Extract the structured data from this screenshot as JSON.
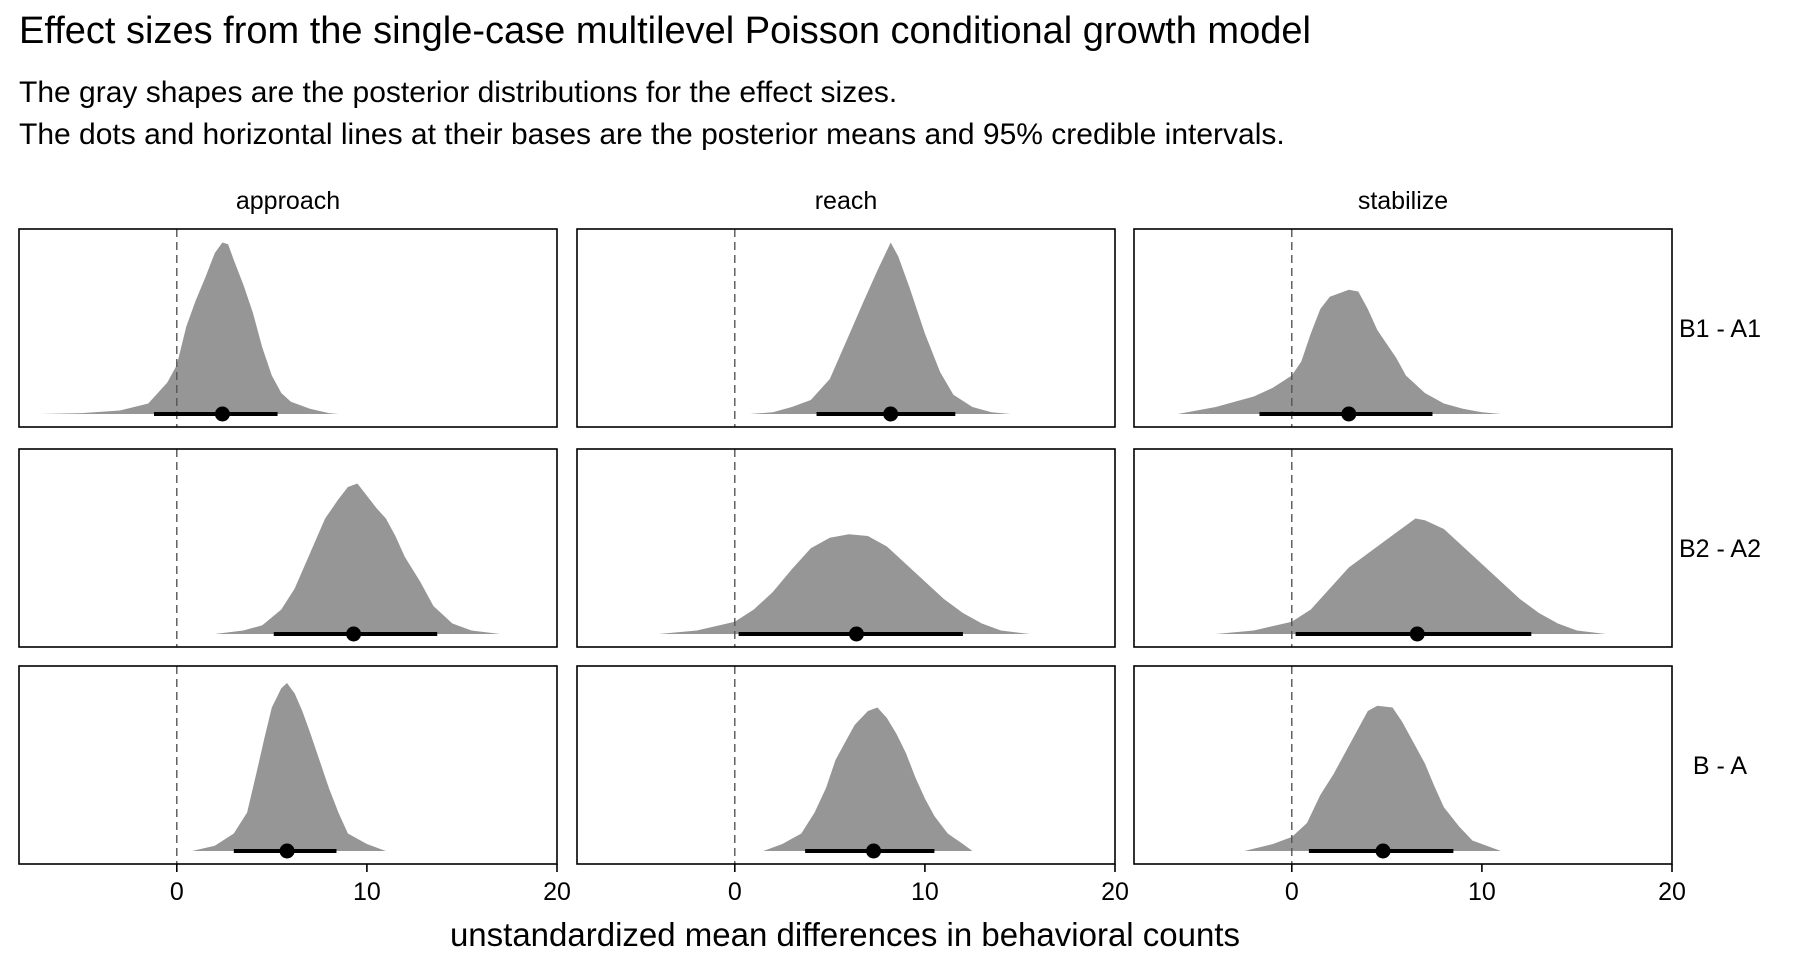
{
  "chart_data": {
    "type": "ridge",
    "title": "Effect sizes from the single-case multilevel Poisson conditional growth model",
    "subtitle": [
      "The gray shapes are the posterior distributions for the effect sizes.",
      "The dots and horizontal lines at their bases are the posterior means and 95% credible intervals."
    ],
    "xlabel": "unstandardized mean differences in behavioral counts",
    "xlim": [
      -8.3,
      20
    ],
    "xticks": [
      0,
      10,
      20
    ],
    "reference_line_x": 0,
    "columns": [
      "approach",
      "reach",
      "stabilize"
    ],
    "rows": [
      "B1 - A1",
      "B2 - A2",
      "B - A"
    ],
    "fill_color": "#969696",
    "panels": [
      {
        "column": "approach",
        "row": "B1 - A1",
        "mean": 2.4,
        "ci": [
          -1.2,
          5.3
        ],
        "density": [
          [
            -7.2,
            0
          ],
          [
            -5,
            0.005
          ],
          [
            -3,
            0.02
          ],
          [
            -1.5,
            0.06
          ],
          [
            -1,
            0.12
          ],
          [
            -0.5,
            0.18
          ],
          [
            0,
            0.28
          ],
          [
            0.5,
            0.5
          ],
          [
            1,
            0.65
          ],
          [
            1.5,
            0.78
          ],
          [
            2,
            0.92
          ],
          [
            2.4,
            0.98
          ],
          [
            2.7,
            0.97
          ],
          [
            3,
            0.88
          ],
          [
            3.5,
            0.74
          ],
          [
            4,
            0.58
          ],
          [
            4.5,
            0.38
          ],
          [
            5,
            0.22
          ],
          [
            5.5,
            0.12
          ],
          [
            6,
            0.07
          ],
          [
            7,
            0.03
          ],
          [
            8,
            0.005
          ],
          [
            8.5,
            0
          ]
        ]
      },
      {
        "column": "reach",
        "row": "B1 - A1",
        "mean": 8.2,
        "ci": [
          4.3,
          11.6
        ],
        "density": [
          [
            0.8,
            0
          ],
          [
            2,
            0.01
          ],
          [
            3,
            0.04
          ],
          [
            4,
            0.08
          ],
          [
            5,
            0.2
          ],
          [
            6,
            0.45
          ],
          [
            6.8,
            0.65
          ],
          [
            7.5,
            0.82
          ],
          [
            8.2,
            0.98
          ],
          [
            8.6,
            0.9
          ],
          [
            9.2,
            0.72
          ],
          [
            10,
            0.46
          ],
          [
            10.8,
            0.24
          ],
          [
            11.5,
            0.11
          ],
          [
            12.5,
            0.04
          ],
          [
            13.5,
            0.01
          ],
          [
            14.5,
            0
          ]
        ]
      },
      {
        "column": "stabilize",
        "row": "B1 - A1",
        "mean": 3.0,
        "ci": [
          -1.7,
          7.4
        ],
        "density": [
          [
            -6,
            0
          ],
          [
            -4,
            0.04
          ],
          [
            -2,
            0.1
          ],
          [
            -1,
            0.15
          ],
          [
            0,
            0.22
          ],
          [
            0.5,
            0.3
          ],
          [
            1,
            0.46
          ],
          [
            1.5,
            0.6
          ],
          [
            2,
            0.67
          ],
          [
            2.5,
            0.69
          ],
          [
            3,
            0.71
          ],
          [
            3.5,
            0.7
          ],
          [
            4,
            0.6
          ],
          [
            4.5,
            0.48
          ],
          [
            5,
            0.4
          ],
          [
            5.5,
            0.32
          ],
          [
            6,
            0.22
          ],
          [
            7,
            0.12
          ],
          [
            8,
            0.06
          ],
          [
            9,
            0.03
          ],
          [
            10,
            0.01
          ],
          [
            11,
            0
          ]
        ]
      },
      {
        "column": "approach",
        "row": "B2 - A2",
        "mean": 9.3,
        "ci": [
          5.1,
          13.7
        ],
        "density": [
          [
            2,
            0
          ],
          [
            3.5,
            0.02
          ],
          [
            4.5,
            0.05
          ],
          [
            5.5,
            0.14
          ],
          [
            6.2,
            0.26
          ],
          [
            7,
            0.46
          ],
          [
            7.8,
            0.66
          ],
          [
            8.5,
            0.77
          ],
          [
            9,
            0.84
          ],
          [
            9.5,
            0.86
          ],
          [
            10,
            0.79
          ],
          [
            10.5,
            0.72
          ],
          [
            11,
            0.66
          ],
          [
            11.5,
            0.56
          ],
          [
            12,
            0.44
          ],
          [
            12.8,
            0.3
          ],
          [
            13.5,
            0.16
          ],
          [
            14.5,
            0.06
          ],
          [
            15.5,
            0.02
          ],
          [
            17,
            0
          ]
        ]
      },
      {
        "column": "reach",
        "row": "B2 - A2",
        "mean": 6.4,
        "ci": [
          0.2,
          12.0
        ],
        "density": [
          [
            -4,
            0
          ],
          [
            -2,
            0.02
          ],
          [
            0,
            0.07
          ],
          [
            1,
            0.14
          ],
          [
            2,
            0.24
          ],
          [
            3,
            0.37
          ],
          [
            4,
            0.49
          ],
          [
            5,
            0.55
          ],
          [
            6,
            0.57
          ],
          [
            7,
            0.56
          ],
          [
            8,
            0.5
          ],
          [
            9,
            0.4
          ],
          [
            10,
            0.3
          ],
          [
            11,
            0.2
          ],
          [
            12,
            0.12
          ],
          [
            13,
            0.06
          ],
          [
            14,
            0.02
          ],
          [
            15.5,
            0
          ]
        ]
      },
      {
        "column": "stabilize",
        "row": "B2 - A2",
        "mean": 6.6,
        "ci": [
          0.2,
          12.6
        ],
        "density": [
          [
            -4,
            0
          ],
          [
            -2,
            0.02
          ],
          [
            0,
            0.07
          ],
          [
            1,
            0.14
          ],
          [
            2,
            0.26
          ],
          [
            3,
            0.38
          ],
          [
            4,
            0.46
          ],
          [
            5,
            0.54
          ],
          [
            6,
            0.62
          ],
          [
            6.5,
            0.66
          ],
          [
            7,
            0.65
          ],
          [
            8,
            0.6
          ],
          [
            9,
            0.5
          ],
          [
            10,
            0.4
          ],
          [
            11,
            0.3
          ],
          [
            12,
            0.2
          ],
          [
            13,
            0.12
          ],
          [
            14,
            0.06
          ],
          [
            15,
            0.02
          ],
          [
            16.5,
            0
          ]
        ]
      },
      {
        "column": "approach",
        "row": "B - A",
        "mean": 5.8,
        "ci": [
          3.0,
          8.4
        ],
        "density": [
          [
            0.8,
            0
          ],
          [
            2,
            0.03
          ],
          [
            3,
            0.1
          ],
          [
            3.7,
            0.22
          ],
          [
            4.2,
            0.45
          ],
          [
            4.6,
            0.64
          ],
          [
            5,
            0.82
          ],
          [
            5.5,
            0.93
          ],
          [
            5.8,
            0.96
          ],
          [
            6.2,
            0.9
          ],
          [
            6.6,
            0.8
          ],
          [
            7,
            0.68
          ],
          [
            7.5,
            0.52
          ],
          [
            8,
            0.36
          ],
          [
            8.5,
            0.22
          ],
          [
            9,
            0.1
          ],
          [
            10,
            0.04
          ],
          [
            11,
            0
          ]
        ]
      },
      {
        "column": "reach",
        "row": "B - A",
        "mean": 7.3,
        "ci": [
          3.7,
          10.5
        ],
        "density": [
          [
            1.5,
            0
          ],
          [
            2.5,
            0.04
          ],
          [
            3.5,
            0.1
          ],
          [
            4.2,
            0.22
          ],
          [
            4.8,
            0.36
          ],
          [
            5.3,
            0.52
          ],
          [
            5.8,
            0.62
          ],
          [
            6.3,
            0.72
          ],
          [
            7,
            0.8
          ],
          [
            7.5,
            0.82
          ],
          [
            8,
            0.76
          ],
          [
            8.5,
            0.67
          ],
          [
            9,
            0.56
          ],
          [
            9.5,
            0.42
          ],
          [
            10,
            0.3
          ],
          [
            10.5,
            0.2
          ],
          [
            11.2,
            0.1
          ],
          [
            12,
            0.04
          ],
          [
            12.5,
            0
          ]
        ]
      },
      {
        "column": "stabilize",
        "row": "B - A",
        "mean": 4.8,
        "ci": [
          0.9,
          8.5
        ],
        "density": [
          [
            -2.5,
            0
          ],
          [
            -1,
            0.04
          ],
          [
            0,
            0.08
          ],
          [
            0.8,
            0.16
          ],
          [
            1.5,
            0.32
          ],
          [
            2.2,
            0.44
          ],
          [
            2.8,
            0.56
          ],
          [
            3.5,
            0.7
          ],
          [
            4,
            0.8
          ],
          [
            4.5,
            0.83
          ],
          [
            5.3,
            0.82
          ],
          [
            5.8,
            0.74
          ],
          [
            6.5,
            0.6
          ],
          [
            7,
            0.5
          ],
          [
            7.5,
            0.37
          ],
          [
            8,
            0.25
          ],
          [
            8.8,
            0.14
          ],
          [
            9.5,
            0.06
          ],
          [
            10.5,
            0.02
          ],
          [
            11,
            0
          ]
        ]
      }
    ]
  }
}
